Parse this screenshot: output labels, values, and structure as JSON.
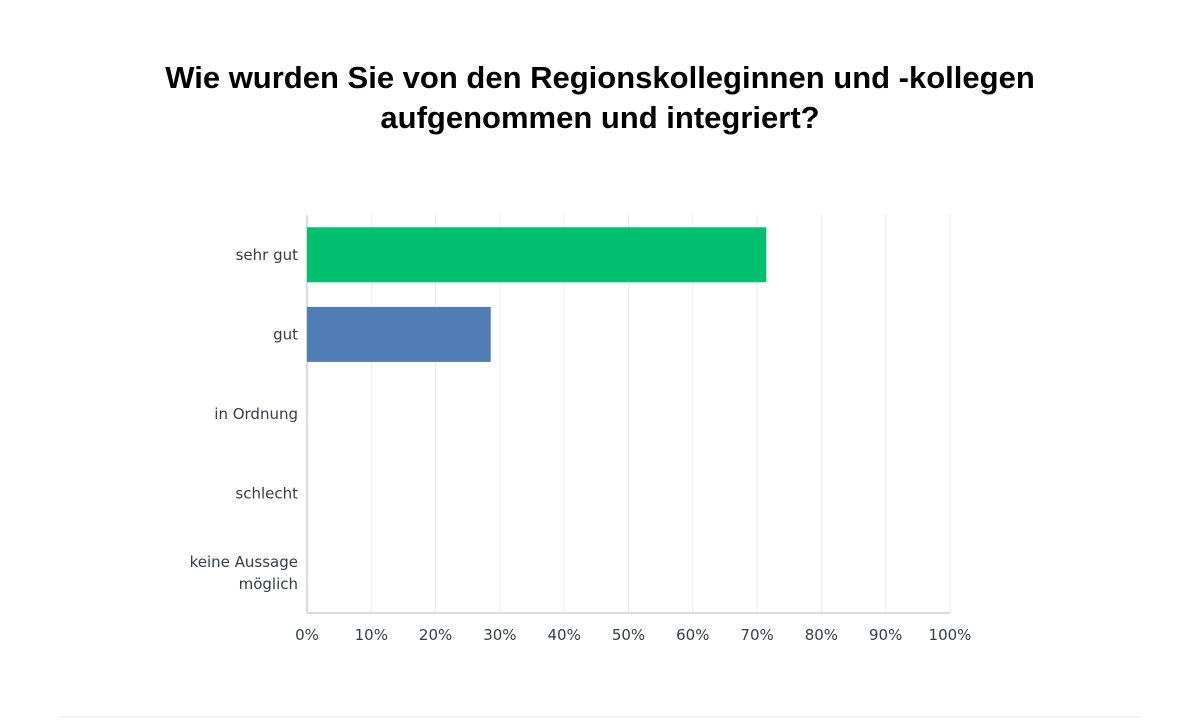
{
  "title_lines": [
    "Wie wurden Sie von den Regionskolleginnen und -kollegen",
    "aufgenommen und integriert?"
  ],
  "chart_data": {
    "type": "bar",
    "orientation": "horizontal",
    "title": "Wie wurden Sie von den Regionskolleginnen und -kollegen aufgenommen und integriert?",
    "categories": [
      "sehr gut",
      "gut",
      "in Ordnung",
      "schlecht",
      "keine Aussage möglich"
    ],
    "category_label_lines": [
      [
        "sehr gut"
      ],
      [
        "gut"
      ],
      [
        "in Ordnung"
      ],
      [
        "schlecht"
      ],
      [
        "keine Aussage",
        "möglich"
      ]
    ],
    "values": [
      71.43,
      28.57,
      0,
      0,
      0
    ],
    "bar_colors": [
      "#00bf6f",
      "#507cb6",
      "#00bf6f",
      "#00bf6f",
      "#00bf6f"
    ],
    "xlim": [
      0,
      100
    ],
    "x_ticks": [
      "0%",
      "10%",
      "20%",
      "30%",
      "40%",
      "50%",
      "60%",
      "70%",
      "80%",
      "90%",
      "100%"
    ],
    "grid": true,
    "legend": "none",
    "xlabel": "",
    "ylabel": ""
  }
}
